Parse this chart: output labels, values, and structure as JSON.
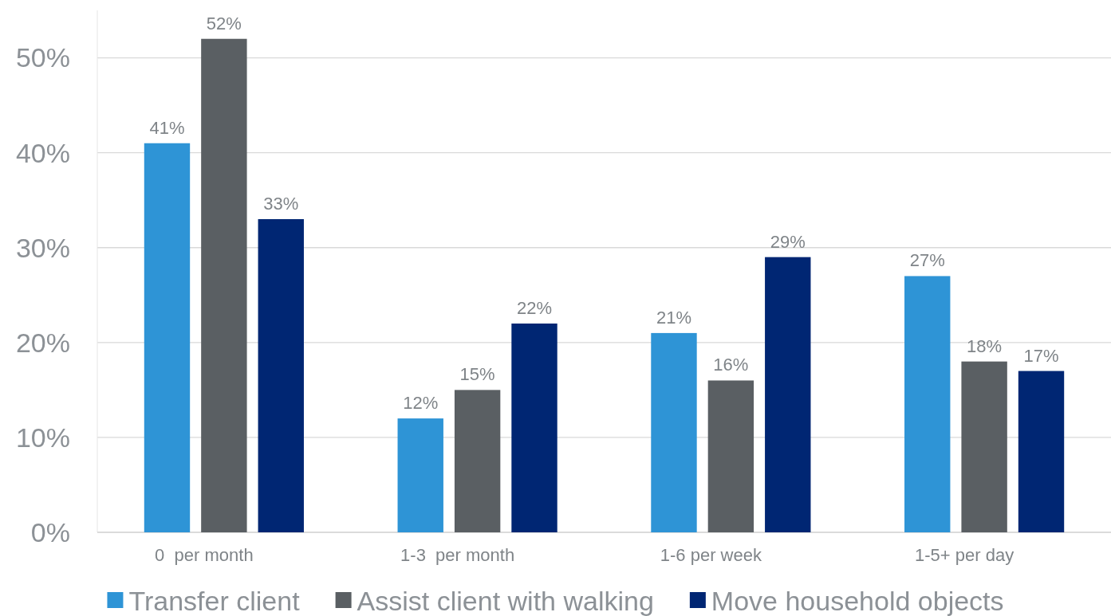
{
  "chart_data": {
    "type": "bar",
    "categories": [
      "0  per month",
      "1-3  per month",
      "1-6 per week",
      "1-5+ per day"
    ],
    "series": [
      {
        "name": "Transfer client",
        "color": "#2e94d6",
        "values": [
          41,
          12,
          21,
          27
        ],
        "value_labels": [
          "41%",
          "12%",
          "21%",
          "27%"
        ]
      },
      {
        "name": "Assist client with walking",
        "color": "#5a5f63",
        "values": [
          52,
          15,
          16,
          18
        ],
        "value_labels": [
          "52%",
          "15%",
          "16%",
          "18%"
        ]
      },
      {
        "name": "Move household objects",
        "color": "#002673",
        "values": [
          33,
          22,
          29,
          17
        ],
        "value_labels": [
          "33%",
          "22%",
          "29%",
          "17%"
        ]
      }
    ],
    "ylim": [
      0,
      55
    ],
    "yticks": [
      {
        "value": 0,
        "label": "0%"
      },
      {
        "value": 10,
        "label": "10%"
      },
      {
        "value": 20,
        "label": "20%"
      },
      {
        "value": 30,
        "label": "30%"
      },
      {
        "value": 40,
        "label": "40%"
      },
      {
        "value": 50,
        "label": "50%"
      }
    ],
    "grid": "y",
    "legend": "bottom"
  }
}
